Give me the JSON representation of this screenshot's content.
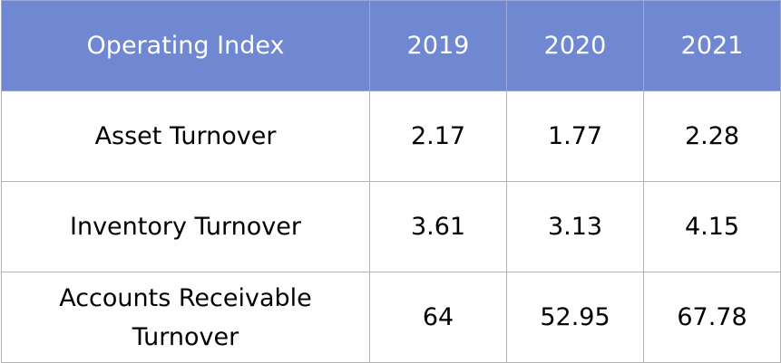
{
  "table": {
    "header_color": "#6f88d1",
    "headers": [
      "Operating Index",
      "2019",
      "2020",
      "2021"
    ],
    "rows": [
      {
        "label": "Asset Turnover",
        "values": [
          "2.17",
          "1.77",
          "2.28"
        ]
      },
      {
        "label": "Inventory Turnover",
        "values": [
          "3.61",
          "3.13",
          "4.15"
        ]
      },
      {
        "label": "Accounts Receivable Turnover",
        "values": [
          "64",
          "52.95",
          "67.78"
        ]
      }
    ]
  }
}
